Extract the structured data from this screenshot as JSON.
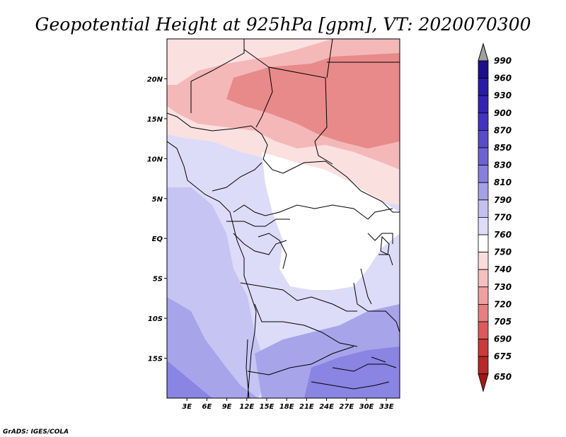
{
  "title": "Geopotential Height at 925hPa [gpm], VT: 2020070300",
  "credit": "GrADS: IGES/COLA",
  "map": {
    "lat_labels": [
      "20N",
      "15N",
      "10N",
      "5N",
      "EQ",
      "5S",
      "10S",
      "15S"
    ],
    "lat_values": [
      20,
      15,
      10,
      5,
      0,
      -5,
      -10,
      -15
    ],
    "lon_labels": [
      "3E",
      "6E",
      "9E",
      "12E",
      "15E",
      "18E",
      "21E",
      "24E",
      "27E",
      "30E",
      "33E"
    ],
    "lon_values": [
      3,
      6,
      9,
      12,
      15,
      18,
      21,
      24,
      27,
      30,
      33
    ],
    "lon_range": [
      0,
      35
    ],
    "lat_range": [
      -20,
      25
    ]
  },
  "colorbar": {
    "levels": [
      "990",
      "960",
      "930",
      "900",
      "870",
      "850",
      "830",
      "810",
      "790",
      "770",
      "760",
      "750",
      "740",
      "730",
      "720",
      "705",
      "690",
      "675",
      "650"
    ],
    "colors": [
      "#1e0f8c",
      "#2a1aa8",
      "#3524b4",
      "#4333c0",
      "#5a4bc8",
      "#6e62d2",
      "#8880dc",
      "#a6a0e6",
      "#c4c0f0",
      "#dedcf8",
      "#ffffff",
      "#fadcdc",
      "#f6c0c0",
      "#f0a0a0",
      "#e68080",
      "#dc5a5a",
      "#cc3a3a",
      "#b82828",
      "#a01818"
    ]
  },
  "regions": [
    {
      "name": "field-north-red",
      "color": "#e88a8a"
    },
    {
      "name": "field-north-pink",
      "color": "#f4b8b8"
    },
    {
      "name": "field-light-pink",
      "color": "#fbe0e0"
    },
    {
      "name": "field-white",
      "color": "#ffffff"
    },
    {
      "name": "field-pale-blue",
      "color": "#dcdcf8"
    },
    {
      "name": "field-light-blue",
      "color": "#c6c4f2"
    },
    {
      "name": "field-mid-blue",
      "color": "#a8a4ea"
    },
    {
      "name": "field-deep-blue",
      "color": "#8a84e2"
    }
  ]
}
